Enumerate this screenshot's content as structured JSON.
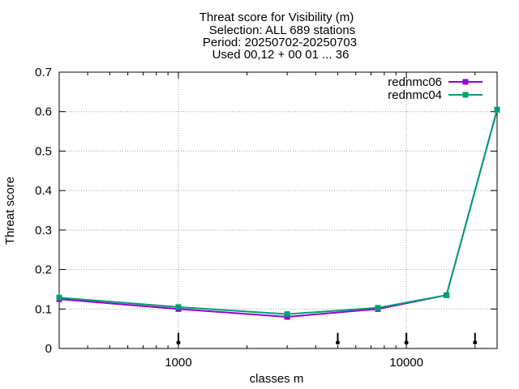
{
  "chart_data": {
    "type": "line",
    "title_lines": [
      "Threat score  for Visibility (m)",
      "Selection: ALL    689 stations",
      "Period: 20250702-20250703",
      "Used 00,12 + 00 01 ... 36"
    ],
    "xlabel": "classes m",
    "ylabel": "Threat score",
    "x_scale": "log",
    "xlim": [
      300,
      25000
    ],
    "ylim": [
      0,
      0.7
    ],
    "x_ticks": [
      {
        "value": 1000,
        "label": "1000"
      },
      {
        "value": 10000,
        "label": "10000"
      }
    ],
    "y_ticks": [
      {
        "value": 0,
        "label": "0"
      },
      {
        "value": 0.1,
        "label": "0.1"
      },
      {
        "value": 0.2,
        "label": "0.2"
      },
      {
        "value": 0.3,
        "label": "0.3"
      },
      {
        "value": 0.4,
        "label": "0.4"
      },
      {
        "value": 0.5,
        "label": "0.5"
      },
      {
        "value": 0.6,
        "label": "0.6"
      },
      {
        "value": 0.7,
        "label": "0.7"
      }
    ],
    "grid": true,
    "legend_position": "top-right",
    "x": [
      300,
      1000,
      3000,
      7500,
      15000,
      25000
    ],
    "series": [
      {
        "name": "rednmc06",
        "color": "#9400d3",
        "values": [
          0.125,
          0.1,
          0.08,
          0.1,
          0.135,
          0.605
        ]
      },
      {
        "name": "rednmc04",
        "color": "#009e73",
        "values": [
          0.129,
          0.105,
          0.087,
          0.103,
          0.135,
          0.605
        ]
      }
    ],
    "sample_markers": {
      "x": [
        1000,
        5000,
        10000,
        20000
      ],
      "y": 0.015
    }
  }
}
